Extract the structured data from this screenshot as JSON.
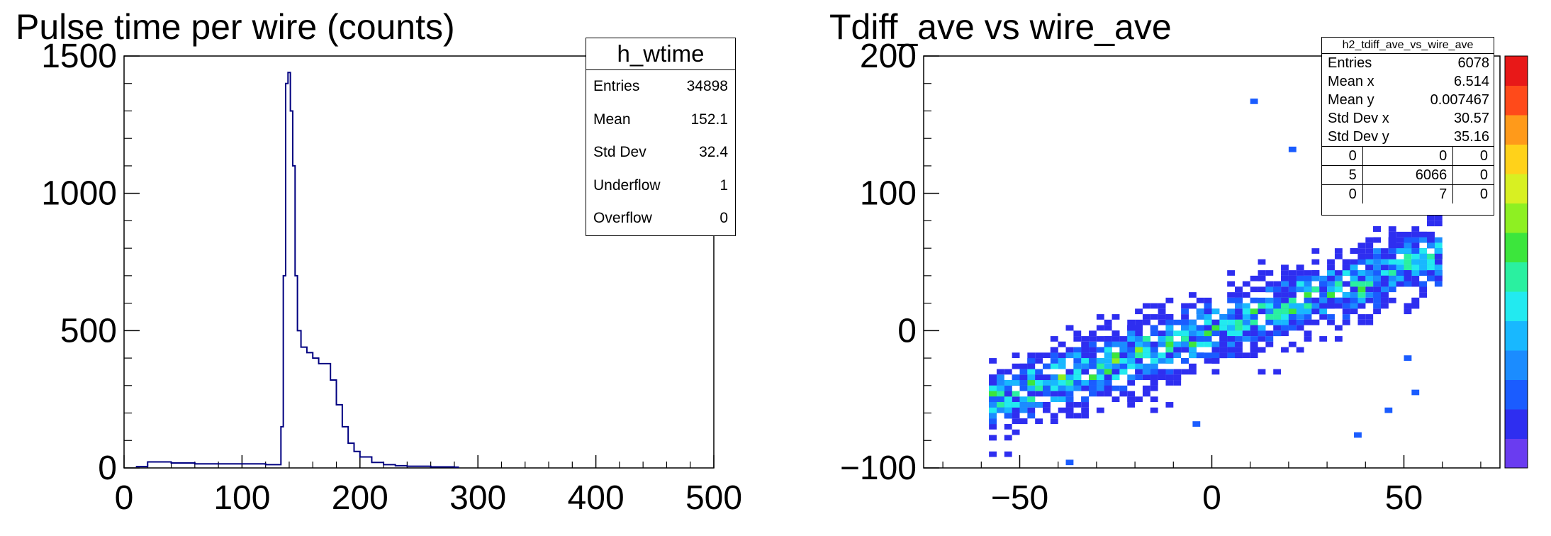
{
  "left": {
    "title": "Pulse time per wire (counts)",
    "stats": {
      "name": "h_wtime",
      "rows": [
        {
          "label": "Entries",
          "value": "34898"
        },
        {
          "label": "Mean",
          "value": "152.1"
        },
        {
          "label": "Std Dev",
          "value": "32.4"
        },
        {
          "label": "Underflow",
          "value": "1"
        },
        {
          "label": "Overflow",
          "value": "0"
        }
      ]
    }
  },
  "right": {
    "title": "Tdiff_ave vs wire_ave",
    "stats": {
      "name": "h2_tdiff_ave_vs_wire_ave",
      "rows": [
        {
          "label": "Entries",
          "value": "6078"
        },
        {
          "label": "Mean x",
          "value": "6.514"
        },
        {
          "label": "Mean y",
          "value": "0.007467"
        },
        {
          "label": "Std Dev x",
          "value": "30.57"
        },
        {
          "label": "Std Dev y",
          "value": "35.16"
        }
      ],
      "grid": [
        [
          "0",
          "0",
          "0"
        ],
        [
          "5",
          "6066",
          "0"
        ],
        [
          "0",
          "7",
          "0"
        ]
      ]
    }
  },
  "chart_data": [
    {
      "type": "area",
      "title": "Pulse time per wire (counts)",
      "xlim": [
        0,
        500
      ],
      "ylim": [
        0,
        1500
      ],
      "xticks": [
        "0",
        "100",
        "200",
        "300",
        "400",
        "500"
      ],
      "yticks": [
        "0",
        "500",
        "1000",
        "1500"
      ],
      "line_color": "#000080",
      "x": [
        10,
        20,
        40,
        60,
        80,
        100,
        120,
        130,
        133,
        135,
        137,
        139,
        141,
        143,
        145,
        147,
        150,
        155,
        160,
        165,
        170,
        175,
        180,
        185,
        190,
        195,
        200,
        210,
        220,
        230,
        240,
        260,
        280
      ],
      "y": [
        5,
        22,
        18,
        15,
        15,
        15,
        12,
        12,
        150,
        700,
        1400,
        1440,
        1300,
        1100,
        700,
        500,
        440,
        420,
        400,
        380,
        380,
        320,
        230,
        150,
        90,
        60,
        40,
        20,
        12,
        8,
        6,
        4,
        3
      ]
    },
    {
      "type": "heatmap",
      "title": "Tdiff_ave vs wire_ave",
      "xlim": [
        -75,
        75
      ],
      "ylim": [
        -100,
        200
      ],
      "xticks": [
        "-50",
        "0",
        "50"
      ],
      "yticks": [
        "-100",
        "0",
        "100",
        "200"
      ],
      "trend": {
        "x": [
          -60,
          60
        ],
        "y": [
          -55,
          55
        ]
      },
      "palette": [
        "#6a3cf0",
        "#2e2ef0",
        "#1a5cff",
        "#1b8cff",
        "#18b8ff",
        "#22eaf0",
        "#2af0a0",
        "#3ce63c",
        "#8ef022",
        "#d8f022",
        "#ffd21a",
        "#ff9a1a",
        "#ff4a1a",
        "#e81818"
      ]
    }
  ]
}
